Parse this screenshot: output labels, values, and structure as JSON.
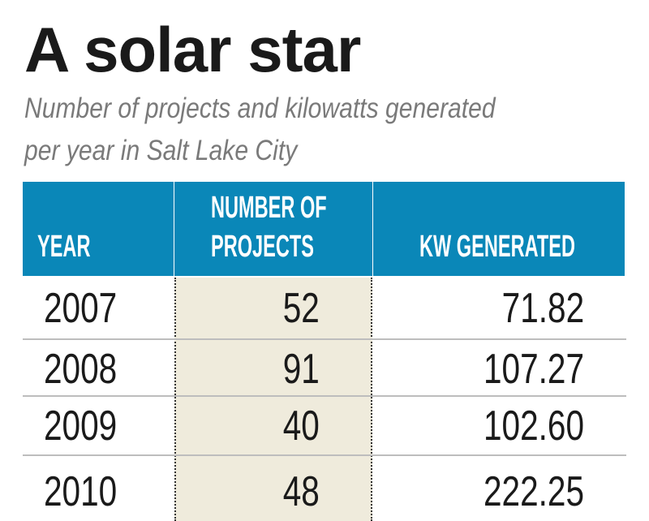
{
  "title": "A solar star",
  "subtitle_lines": [
    "Number of projects and kilowatts generated",
    "per year in Salt Lake City"
  ],
  "colors": {
    "header": "#0a87b8",
    "highlight_column": "#efebdc"
  },
  "chart_data": {
    "type": "table",
    "title": "A solar star",
    "subtitle": "Number of projects and kilowatts generated per year in Salt Lake City",
    "columns": [
      "YEAR",
      "NUMBER OF PROJECTS",
      "KW GENERATED"
    ],
    "header_lines": {
      "year": [
        "YEAR"
      ],
      "projects": [
        "NUMBER OF",
        "PROJECTS"
      ],
      "kw": [
        "KW GENERATED"
      ]
    },
    "rows": [
      {
        "year": "2007",
        "projects": "52",
        "kw": "71.82"
      },
      {
        "year": "2008",
        "projects": "91",
        "kw": "107.27"
      },
      {
        "year": "2009",
        "projects": "40",
        "kw": "102.60"
      },
      {
        "year": "2010",
        "projects": "48",
        "kw": "222.25"
      }
    ]
  }
}
